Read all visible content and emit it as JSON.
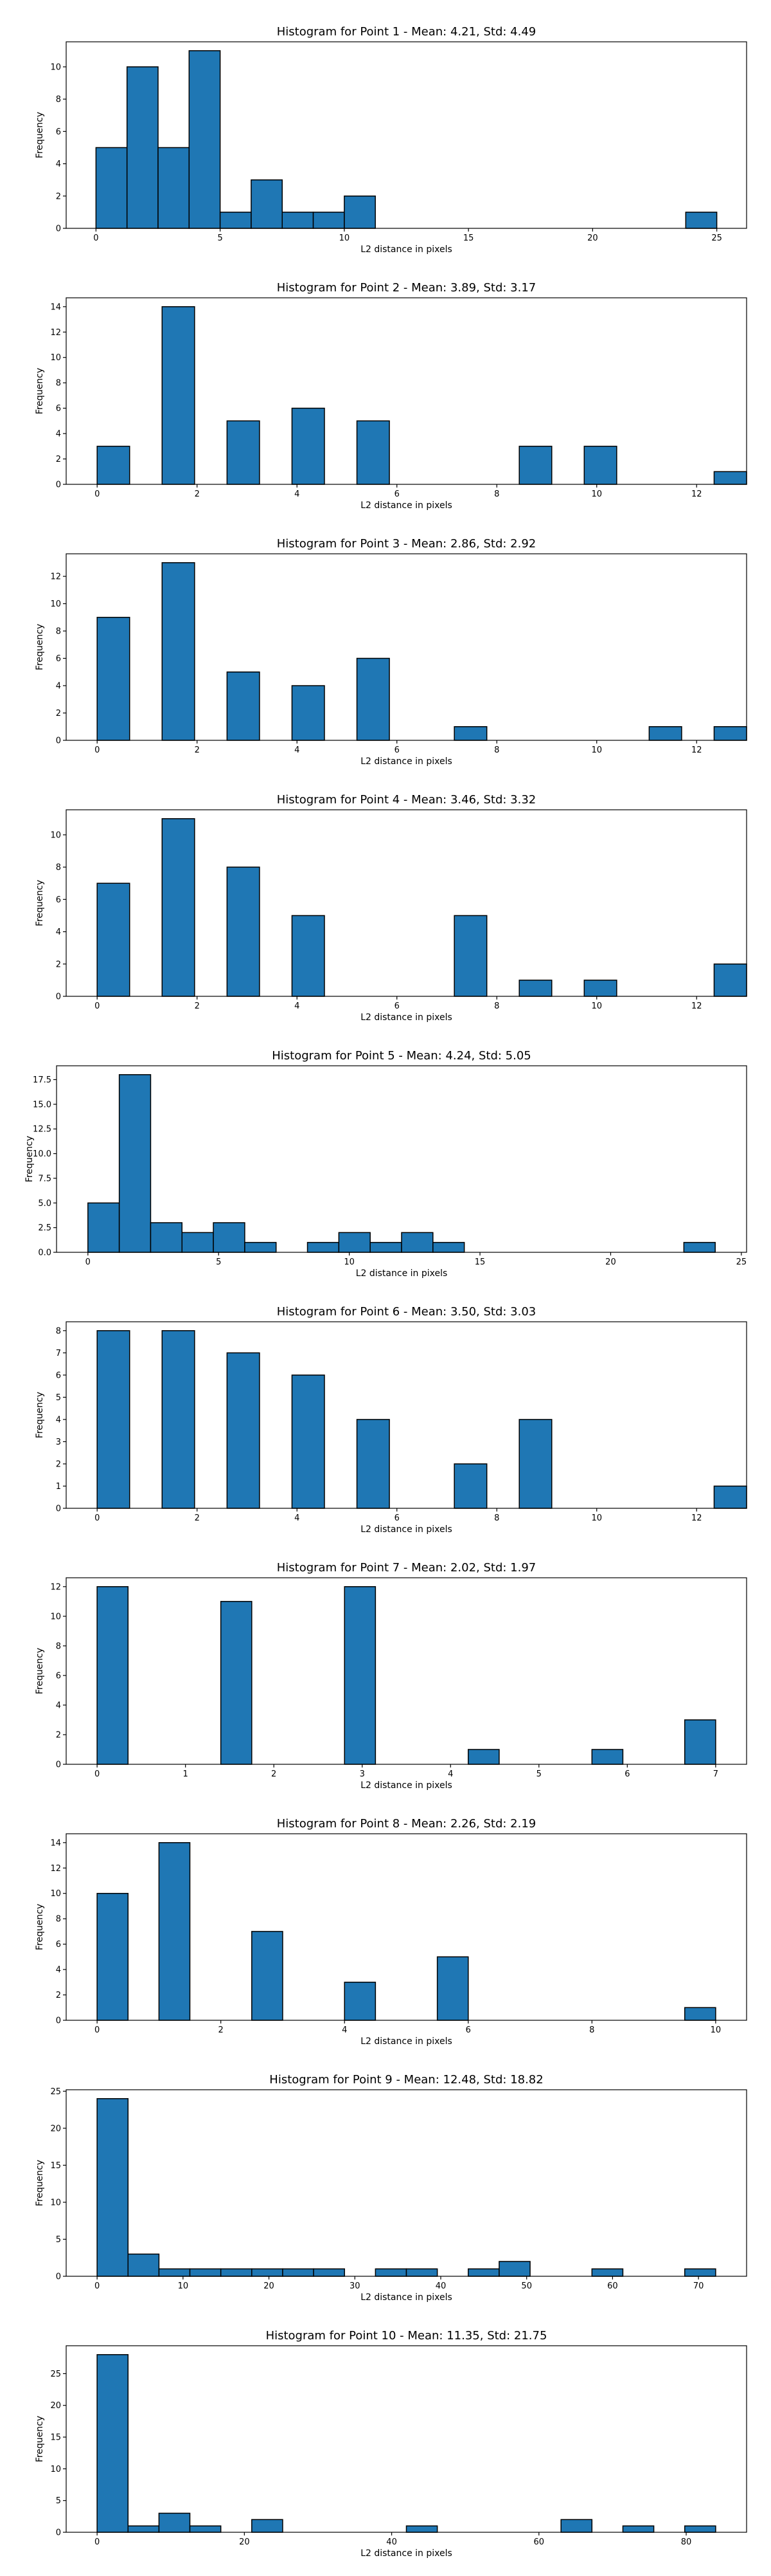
{
  "chart_data": [
    {
      "type": "bar",
      "title": "Histogram for Point 1 - Mean: 4.21, Std: 4.49",
      "xlabel": "L2 distance in pixels",
      "ylabel": "Frequency",
      "xlim": [
        -1.2,
        26.2
      ],
      "ylim": [
        0,
        11.55
      ],
      "xticks": [
        0,
        5,
        10,
        15,
        20,
        25
      ],
      "yticks": [
        0,
        2,
        4,
        6,
        8,
        10
      ],
      "bars": [
        [
          0,
          1.25,
          5
        ],
        [
          1.25,
          2.5,
          10
        ],
        [
          2.5,
          3.75,
          5
        ],
        [
          3.75,
          5,
          11
        ],
        [
          5,
          6.25,
          1
        ],
        [
          6.25,
          7.5,
          3
        ],
        [
          7.5,
          8.75,
          1
        ],
        [
          8.75,
          10,
          1
        ],
        [
          10,
          11.25,
          2
        ],
        [
          23.75,
          25,
          1
        ]
      ]
    },
    {
      "type": "bar",
      "title": "Histogram for Point 2 - Mean: 3.89, Std: 3.17",
      "xlabel": "L2 distance in pixels",
      "ylabel": "Frequency",
      "xlim": [
        -0.62,
        13.0
      ],
      "ylim": [
        0,
        14.7
      ],
      "xticks": [
        0,
        2,
        4,
        6,
        8,
        10,
        12
      ],
      "yticks": [
        0,
        2,
        4,
        6,
        8,
        10,
        12,
        14
      ],
      "bars": [
        [
          0,
          0.65,
          3
        ],
        [
          1.3,
          1.95,
          14
        ],
        [
          2.6,
          3.25,
          5
        ],
        [
          3.9,
          4.55,
          6
        ],
        [
          5.2,
          5.85,
          5
        ],
        [
          8.45,
          9.1,
          3
        ],
        [
          9.75,
          10.4,
          3
        ],
        [
          12.35,
          13.0,
          1
        ]
      ]
    },
    {
      "type": "bar",
      "title": "Histogram for Point 3 - Mean: 2.86, Std: 2.92",
      "xlabel": "L2 distance in pixels",
      "ylabel": "Frequency",
      "xlim": [
        -0.62,
        13.0
      ],
      "ylim": [
        0,
        13.65
      ],
      "xticks": [
        0,
        2,
        4,
        6,
        8,
        10,
        12
      ],
      "yticks": [
        0,
        2,
        4,
        6,
        8,
        10,
        12
      ],
      "bars": [
        [
          0,
          0.65,
          9
        ],
        [
          1.3,
          1.95,
          13
        ],
        [
          2.6,
          3.25,
          5
        ],
        [
          3.9,
          4.55,
          4
        ],
        [
          5.2,
          5.85,
          6
        ],
        [
          7.15,
          7.8,
          1
        ],
        [
          11.05,
          11.7,
          1
        ],
        [
          12.35,
          13.0,
          1
        ]
      ]
    },
    {
      "type": "bar",
      "title": "Histogram for Point 4 - Mean: 3.46, Std: 3.32",
      "xlabel": "L2 distance in pixels",
      "ylabel": "Frequency",
      "xlim": [
        -0.62,
        13.0
      ],
      "ylim": [
        0,
        11.55
      ],
      "xticks": [
        0,
        2,
        4,
        6,
        8,
        10,
        12
      ],
      "yticks": [
        0,
        2,
        4,
        6,
        8,
        10
      ],
      "bars": [
        [
          0,
          0.65,
          7
        ],
        [
          1.3,
          1.95,
          11
        ],
        [
          2.6,
          3.25,
          8
        ],
        [
          3.9,
          4.55,
          5
        ],
        [
          7.15,
          7.8,
          5
        ],
        [
          8.45,
          9.1,
          1
        ],
        [
          9.75,
          10.4,
          1
        ],
        [
          12.35,
          13.0,
          2
        ]
      ]
    },
    {
      "type": "bar",
      "title": "Histogram for Point 5 - Mean: 4.24, Std: 5.05",
      "xlabel": "L2 distance in pixels",
      "ylabel": "Frequency",
      "xlim": [
        -1.2,
        25.2
      ],
      "ylim": [
        0,
        18.9
      ],
      "xticks": [
        0,
        5,
        10,
        15,
        20,
        25
      ],
      "yticks": [
        0,
        2.5,
        5.0,
        7.5,
        10.0,
        12.5,
        15.0,
        17.5
      ],
      "ytick_labels": [
        "0.0",
        "2.5",
        "5.0",
        "7.5",
        "10.0",
        "12.5",
        "15.0",
        "17.5"
      ],
      "bars": [
        [
          0,
          1.2,
          5
        ],
        [
          1.2,
          2.4,
          18
        ],
        [
          2.4,
          3.6,
          3
        ],
        [
          3.6,
          4.8,
          2
        ],
        [
          4.8,
          6.0,
          3
        ],
        [
          6.0,
          7.2,
          1
        ],
        [
          8.4,
          9.6,
          1
        ],
        [
          9.6,
          10.8,
          2
        ],
        [
          10.8,
          12.0,
          1
        ],
        [
          12.0,
          13.2,
          2
        ],
        [
          13.2,
          14.4,
          1
        ],
        [
          22.8,
          24.0,
          1
        ]
      ]
    },
    {
      "type": "bar",
      "title": "Histogram for Point 6 - Mean: 3.50, Std: 3.03",
      "xlabel": "L2 distance in pixels",
      "ylabel": "Frequency",
      "xlim": [
        -0.62,
        13.0
      ],
      "ylim": [
        0,
        8.4
      ],
      "xticks": [
        0,
        2,
        4,
        6,
        8,
        10,
        12
      ],
      "yticks": [
        0,
        1,
        2,
        3,
        4,
        5,
        6,
        7,
        8
      ],
      "bars": [
        [
          0,
          0.65,
          8
        ],
        [
          1.3,
          1.95,
          8
        ],
        [
          2.6,
          3.25,
          7
        ],
        [
          3.9,
          4.55,
          6
        ],
        [
          5.2,
          5.85,
          4
        ],
        [
          7.15,
          7.8,
          2
        ],
        [
          8.45,
          9.1,
          4
        ],
        [
          12.35,
          13.0,
          1
        ]
      ]
    },
    {
      "type": "bar",
      "title": "Histogram for Point 7 - Mean: 2.02, Std: 1.97",
      "xlabel": "L2 distance in pixels",
      "ylabel": "Frequency",
      "xlim": [
        -0.35,
        7.35
      ],
      "ylim": [
        0,
        12.6
      ],
      "xticks": [
        0,
        1,
        2,
        3,
        4,
        5,
        6,
        7
      ],
      "yticks": [
        0,
        2,
        4,
        6,
        8,
        10,
        12
      ],
      "bars": [
        [
          0,
          0.35,
          12
        ],
        [
          1.4,
          1.75,
          11
        ],
        [
          2.8,
          3.15,
          12
        ],
        [
          4.2,
          4.55,
          1
        ],
        [
          5.6,
          5.95,
          1
        ],
        [
          6.65,
          7.0,
          3
        ]
      ]
    },
    {
      "type": "bar",
      "title": "Histogram for Point 8 - Mean: 2.26, Std: 2.19",
      "xlabel": "L2 distance in pixels",
      "ylabel": "Frequency",
      "xlim": [
        -0.5,
        10.5
      ],
      "ylim": [
        0,
        14.7
      ],
      "xticks": [
        0,
        2,
        4,
        6,
        8,
        10
      ],
      "yticks": [
        0,
        2,
        4,
        6,
        8,
        10,
        12,
        14
      ],
      "bars": [
        [
          0,
          0.5,
          10
        ],
        [
          1.0,
          1.5,
          14
        ],
        [
          2.5,
          3.0,
          7
        ],
        [
          4.0,
          4.5,
          3
        ],
        [
          5.5,
          6.0,
          5
        ],
        [
          9.5,
          10.0,
          1
        ]
      ]
    },
    {
      "type": "bar",
      "title": "Histogram for Point 9 - Mean: 12.48, Std: 18.82",
      "xlabel": "L2 distance in pixels",
      "ylabel": "Frequency",
      "xlim": [
        -3.6,
        75.6
      ],
      "ylim": [
        0,
        25.2
      ],
      "xticks": [
        0,
        10,
        20,
        30,
        40,
        50,
        60,
        70
      ],
      "yticks": [
        0,
        5,
        10,
        15,
        20,
        25
      ],
      "bars": [
        [
          0,
          3.6,
          24
        ],
        [
          3.6,
          7.2,
          3
        ],
        [
          7.2,
          10.8,
          1
        ],
        [
          10.8,
          14.4,
          1
        ],
        [
          14.4,
          18.0,
          1
        ],
        [
          18.0,
          21.6,
          1
        ],
        [
          21.6,
          25.2,
          1
        ],
        [
          25.2,
          28.8,
          1
        ],
        [
          32.4,
          36.0,
          1
        ],
        [
          36.0,
          39.6,
          1
        ],
        [
          43.2,
          46.8,
          1
        ],
        [
          46.8,
          50.4,
          2
        ],
        [
          57.6,
          61.2,
          1
        ],
        [
          68.4,
          72.0,
          1
        ]
      ]
    },
    {
      "type": "bar",
      "title": "Histogram for Point 10 - Mean: 11.35, Std: 21.75",
      "xlabel": "L2 distance in pixels",
      "ylabel": "Frequency",
      "xlim": [
        -4.2,
        88.2
      ],
      "ylim": [
        0,
        29.4
      ],
      "xticks": [
        0,
        20,
        40,
        60,
        80
      ],
      "yticks": [
        0,
        5,
        10,
        15,
        20,
        25
      ],
      "bars": [
        [
          0,
          4.2,
          28
        ],
        [
          4.2,
          8.4,
          1
        ],
        [
          8.4,
          12.6,
          3
        ],
        [
          12.6,
          16.8,
          1
        ],
        [
          21.0,
          25.2,
          2
        ],
        [
          42.0,
          46.2,
          1
        ],
        [
          63.0,
          67.2,
          2
        ],
        [
          71.4,
          75.6,
          1
        ],
        [
          79.8,
          84.0,
          1
        ]
      ]
    }
  ]
}
